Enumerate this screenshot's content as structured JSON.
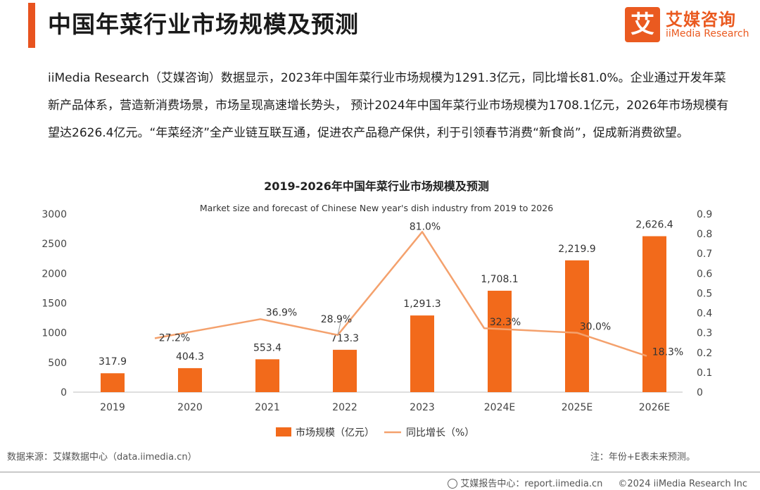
{
  "header": {
    "title": "中国年菜行业市场规模及预测"
  },
  "logo": {
    "mark": "艾",
    "cn": "艾媒咨询",
    "en": "iiMedia Research"
  },
  "intro": "iiMedia Research（艾媒咨询）数据显示，2023年中国年菜行业市场规模为1291.3亿元，同比增长81.0%。企业通过开发年菜新产品体系，营造新消费场景，市场呈现高速增长势头， 预计2024年中国年菜行业市场规模为1708.1亿元，2026年市场规模有望达2626.4亿元。“年菜经济”全产业链互联互通，促进农产品稳产保供，利于引领春节消费“新食尚”，促成新消费欲望。",
  "chart_data": {
    "type": "bar+line",
    "title": "2019-2026年中国年菜行业市场规模及预测",
    "subtitle": "Market size and forecast of Chinese New year's dish industry from 2019 to 2026",
    "categories": [
      "2019",
      "2020",
      "2021",
      "2022",
      "2023",
      "2024E",
      "2025E",
      "2026E"
    ],
    "series": [
      {
        "name": "市场规模（亿元）",
        "type": "bar",
        "axis": "left",
        "values": [
          317.9,
          404.3,
          553.4,
          713.3,
          1291.3,
          1708.1,
          2219.9,
          2626.4
        ],
        "labels": [
          "317.9",
          "404.3",
          "553.4",
          "713.3",
          "1,291.3",
          "1,708.1",
          "2,219.9",
          "2,626.4"
        ]
      },
      {
        "name": "同比增长（%）",
        "type": "line",
        "axis": "right",
        "x": [
          "2020",
          "2021",
          "2022",
          "2023",
          "2024E",
          "2025E",
          "2026E"
        ],
        "values": [
          0.272,
          0.369,
          0.289,
          0.81,
          0.323,
          0.3,
          0.183
        ],
        "labels": [
          "27.2%",
          "36.9%",
          "28.9%",
          "81.0%",
          "32.3%",
          "30.0%",
          "18.3%"
        ]
      }
    ],
    "y_left": {
      "min": 0,
      "max": 3000,
      "ticks": [
        "0",
        "500",
        "1000",
        "1500",
        "2000",
        "2500",
        "3000"
      ]
    },
    "y_right": {
      "min": 0,
      "max": 0.9,
      "ticks": [
        "0",
        "0.1",
        "0.2",
        "0.3",
        "0.4",
        "0.5",
        "0.6",
        "0.7",
        "0.8",
        "0.9"
      ]
    },
    "grid": false,
    "legend_position": "bottom",
    "colors": {
      "bar": "#f26a1b",
      "line": "#f4a16d"
    }
  },
  "footer": {
    "source": "数据来源：艾媒数据中心（data.iimedia.cn）",
    "note": "注：年份+E表未来预测。",
    "report": "艾媒报告中心：report.iimedia.cn",
    "copyright": "©2024  iiMedia Research  Inc"
  }
}
